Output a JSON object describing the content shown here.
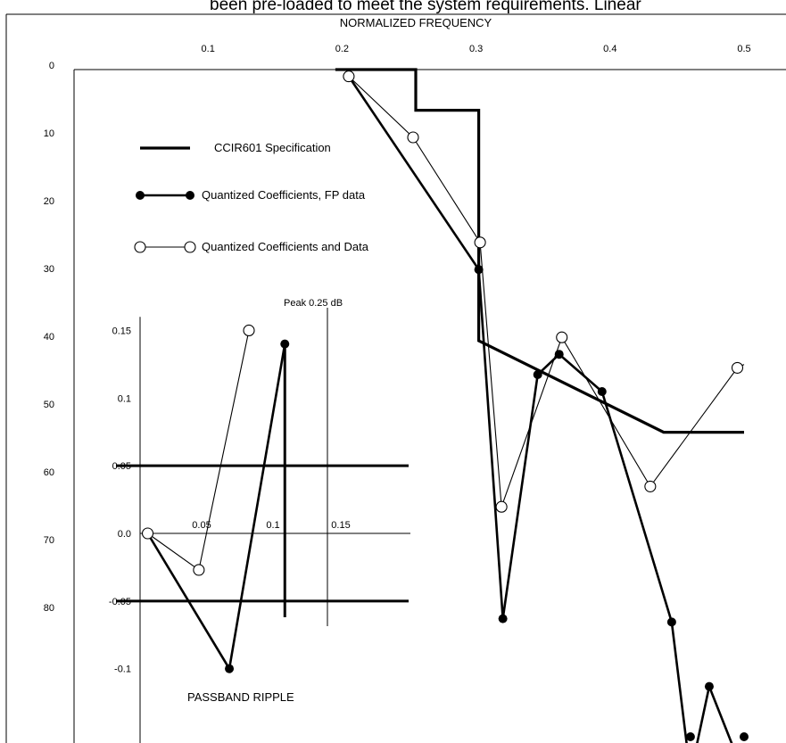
{
  "caption_fragment": "been pre-loaded to meet the system requirements. Linear",
  "chart_data": [
    {
      "type": "line",
      "title": "NORMALIZED FREQUENCY",
      "xlabel": "NORMALIZED FREQUENCY",
      "ylabel": "",
      "xlim": [
        0,
        0.5
      ],
      "ylim": [
        0,
        100
      ],
      "y_inverted": true,
      "grid": false,
      "legend_position": "top-left",
      "x_ticks": [
        {
          "value": 0.1,
          "label": "0.1"
        },
        {
          "value": 0.2,
          "label": "0.2"
        },
        {
          "value": 0.3,
          "label": "0.3"
        },
        {
          "value": 0.4,
          "label": "0.4"
        },
        {
          "value": 0.5,
          "label": "0.5"
        }
      ],
      "y_ticks": [
        {
          "value": 0,
          "label": "0"
        },
        {
          "value": 10,
          "label": "10"
        },
        {
          "value": 20,
          "label": "20"
        },
        {
          "value": 30,
          "label": "30"
        },
        {
          "value": 40,
          "label": "40"
        },
        {
          "value": 50,
          "label": "50"
        },
        {
          "value": 60,
          "label": "60"
        },
        {
          "value": 70,
          "label": "70"
        },
        {
          "value": 80,
          "label": "80"
        }
      ],
      "series": [
        {
          "name": "CCIR601 Specification",
          "style": "thick-line",
          "color": "#000000",
          "points": [
            [
              0.195,
              0
            ],
            [
              0.255,
              0
            ],
            [
              0.255,
              6
            ],
            [
              0.302,
              6
            ],
            [
              0.302,
              40
            ],
            [
              0.44,
              53.5
            ],
            [
              0.5,
              53.5
            ]
          ]
        },
        {
          "name": "Quantized Coefficients, FP data",
          "style": "filled-marker",
          "color": "#000000",
          "points": [
            [
              0.205,
              1
            ],
            [
              0.302,
              29.5
            ],
            [
              0.32,
              81
            ],
            [
              0.346,
              45
            ],
            [
              0.362,
              42
            ],
            [
              0.394,
              47.5
            ],
            [
              0.446,
              81.5
            ],
            [
              0.46,
              104
            ],
            [
              0.474,
              91
            ],
            [
              0.5,
              104
            ]
          ]
        },
        {
          "name": "Quantized Coefficients and Data",
          "style": "open-marker",
          "color": "#000000",
          "points": [
            [
              0.205,
              1
            ],
            [
              0.253,
              10
            ],
            [
              0.303,
              25.5
            ],
            [
              0.319,
              64.5
            ],
            [
              0.364,
              39.5
            ],
            [
              0.43,
              61.5
            ],
            [
              0.495,
              44
            ],
            [
              0.5,
              43.5
            ]
          ]
        }
      ]
    },
    {
      "type": "line",
      "title": "PASSBAND RIPPLE",
      "annotation": "Peak 0.25 dB",
      "xlim": [
        0,
        0.16
      ],
      "ylim": [
        -0.13,
        0.175
      ],
      "grid": false,
      "x_ticks": [
        {
          "value": 0.05,
          "label": "0.05"
        },
        {
          "value": 0.1,
          "label": "0.1"
        },
        {
          "value": 0.15,
          "label": "0.15"
        }
      ],
      "y_ticks": [
        {
          "value": 0.15,
          "label": "0.15"
        },
        {
          "value": 0.1,
          "label": "0.1"
        },
        {
          "value": 0.05,
          "label": "0.05"
        },
        {
          "value": 0.0,
          "label": "0.0"
        },
        {
          "value": -0.05,
          "label": "-0.05"
        },
        {
          "value": -0.1,
          "label": "-0.1"
        }
      ],
      "limits": [
        0.05,
        -0.05
      ],
      "series": [
        {
          "name": "Quantized Coefficients, FP data",
          "style": "filled-marker",
          "color": "#000000",
          "points": [
            [
              0.007,
              0.0
            ],
            [
              0.082,
              -0.1
            ],
            [
              0.133,
              0.14
            ]
          ]
        },
        {
          "name": "Quantized Coefficients and Data",
          "style": "open-marker",
          "color": "#000000",
          "points": [
            [
              0.007,
              0.0
            ],
            [
              0.054,
              -0.027
            ],
            [
              0.1,
              0.15
            ]
          ]
        }
      ]
    }
  ]
}
